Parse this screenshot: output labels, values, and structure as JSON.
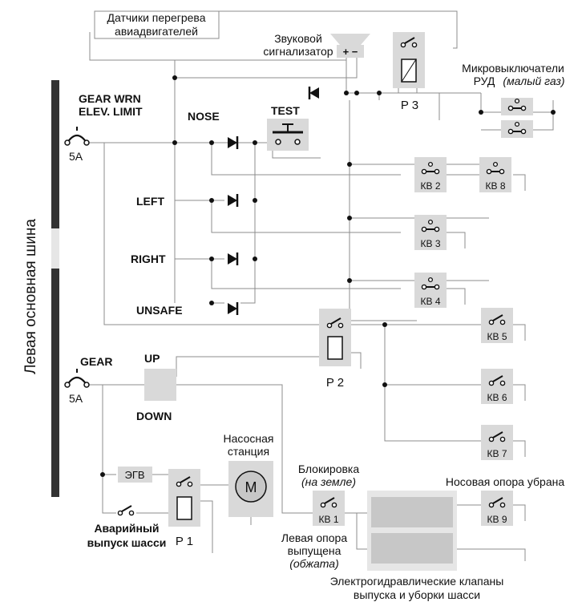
{
  "bus_label": "Левая основная шина",
  "top_note": {
    "line1": "Датчики перегрева",
    "line2": "авиадвигателей"
  },
  "buzzer": {
    "line1": "Звуковой",
    "line2": "сигнализатор",
    "polarity": "+ −"
  },
  "throttle_switches": {
    "line1": "Микровыключатели",
    "line2": "РУД",
    "line2_italic": "(малый газ)"
  },
  "breaker_top": {
    "line1": "GEAR WRN",
    "line2": "ELEV. LIMIT",
    "rating": "5A"
  },
  "breaker_gear": {
    "line1": "GEAR",
    "rating": "5A"
  },
  "lamps": [
    "NOSE",
    "LEFT",
    "RIGHT",
    "UNSAFE"
  ],
  "test_label": "TEST",
  "relays": [
    "P 3",
    "P 2",
    "P 1"
  ],
  "limit_switches": [
    "КВ 2",
    "КВ 8",
    "КВ 3",
    "КВ 4",
    "КВ 5",
    "КВ 6",
    "КВ 7",
    "КВ 1",
    "КВ 9"
  ],
  "handle": {
    "up": "UP",
    "down": "DOWN"
  },
  "egv": "ЭГВ",
  "pump": {
    "line1": "Насосная",
    "line2": "станция",
    "motor": "M"
  },
  "emergency": {
    "line1": "Аварийный",
    "line2": "выпуск шасси"
  },
  "blocking": {
    "line1": "Блокировка",
    "line2": "(на земле)"
  },
  "nose_up": "Носовая опора убрана",
  "left_gear": {
    "line1": "Левая опора",
    "line2": "выпущена",
    "line3": "(обжата)"
  },
  "valves": {
    "line1": "Электрогидравлические клапаны",
    "line2": "выпуска и уборки шасси"
  },
  "colors": {
    "wire": "#8c8c8c",
    "component_fill": "#d9d9d9",
    "bus": "#333333",
    "ink": "#111111"
  }
}
